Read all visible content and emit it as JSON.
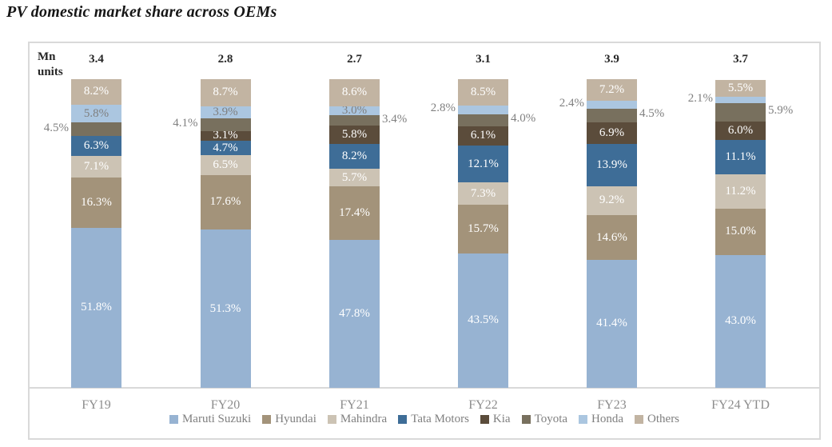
{
  "chart_data": {
    "type": "bar",
    "stacked": true,
    "title": "PV domestic market share across OEMs",
    "unit_label": "Mn units",
    "ylim": [
      0,
      100
    ],
    "grid": false,
    "legend_position": "bottom",
    "categories": [
      "FY19",
      "FY20",
      "FY21",
      "FY22",
      "FY23",
      "FY24 YTD"
    ],
    "totals": [
      3.4,
      2.8,
      2.7,
      3.1,
      3.9,
      3.7
    ],
    "series": [
      {
        "name": "Maruti Suzuki",
        "color": "#97b3d2",
        "inside_label_color": "#ffffff",
        "values": [
          51.8,
          51.3,
          47.8,
          43.5,
          41.4,
          43.0
        ],
        "placements": [
          "in",
          "in",
          "in",
          "in",
          "in",
          "in"
        ]
      },
      {
        "name": "Hyundai",
        "color": "#a3937a",
        "inside_label_color": "#ffffff",
        "values": [
          16.3,
          17.6,
          17.4,
          15.7,
          14.6,
          15.0
        ],
        "placements": [
          "in",
          "in",
          "in",
          "in",
          "in",
          "in"
        ]
      },
      {
        "name": "Mahindra",
        "color": "#ccc3b4",
        "inside_label_color": "#ffffff",
        "values": [
          7.1,
          6.5,
          5.7,
          7.3,
          9.2,
          11.2
        ],
        "placements": [
          "in",
          "in",
          "in",
          "in",
          "in",
          "in"
        ]
      },
      {
        "name": "Tata Motors",
        "color": "#3e6d97",
        "inside_label_color": "#ffffff",
        "values": [
          6.3,
          4.7,
          8.2,
          12.1,
          13.9,
          11.1
        ],
        "placements": [
          "in",
          "in",
          "in",
          "in",
          "in",
          "in"
        ]
      },
      {
        "name": "Kia",
        "color": "#5b4c3b",
        "inside_label_color": "#ffffff",
        "values": [
          0,
          3.1,
          5.8,
          6.1,
          6.9,
          6.0
        ],
        "placements": [
          "none",
          "in",
          "in",
          "in",
          "in",
          "in"
        ]
      },
      {
        "name": "Toyota",
        "color": "#78705e",
        "inside_label_color": "#ffffff",
        "values": [
          4.5,
          4.1,
          3.4,
          4.0,
          4.5,
          5.9
        ],
        "placements": [
          "left",
          "left",
          "right",
          "right",
          "right",
          "right"
        ]
      },
      {
        "name": "Honda",
        "color": "#abc6e0",
        "inside_label_color": "#7f7f7f",
        "values": [
          5.8,
          3.9,
          3.0,
          2.8,
          2.4,
          2.1
        ],
        "placements": [
          "in",
          "in",
          "in",
          "left",
          "left",
          "left"
        ]
      },
      {
        "name": "Others",
        "color": "#c2b4a2",
        "inside_label_color": "#ffffff",
        "values": [
          8.2,
          8.7,
          8.6,
          8.5,
          7.2,
          5.5
        ],
        "placements": [
          "in",
          "in",
          "in",
          "in",
          "in",
          "in"
        ]
      }
    ]
  }
}
